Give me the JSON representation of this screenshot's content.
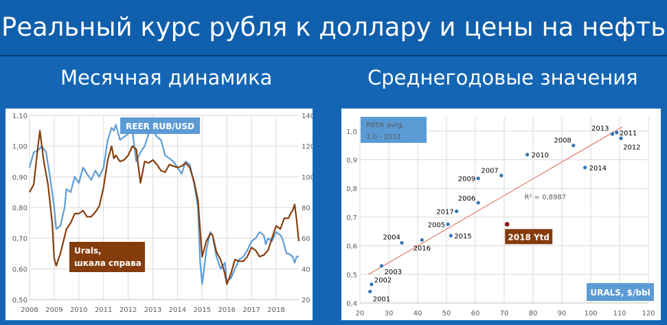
{
  "page": {
    "title": "Реальный курс рубля к доллару и цены на нефть",
    "left_subtitle": "Месячная динамика",
    "right_subtitle": "Среднегодовые значения"
  },
  "colors": {
    "background": "#1466b4",
    "reer_line": "#5b9bd5",
    "urals_line": "#843c0c",
    "scatter_points": "#2e75b6",
    "highlight_point": "#8b1a1a",
    "trend_line": "#e07b6a",
    "label_box_blue": "#5b9bd5"
  },
  "chart_data": [
    {
      "type": "line",
      "x_ticks": [
        "2008",
        "2009",
        "2010",
        "2011",
        "2012",
        "2013",
        "2014",
        "2015",
        "2016",
        "2017",
        "2018"
      ],
      "y_left_ticks": [
        "1,10",
        "1,00",
        "0,90",
        "0,80",
        "0,70",
        "0,60",
        "0,50"
      ],
      "y_right_ticks": [
        "140",
        "120",
        "100",
        "80",
        "60",
        "40",
        "20"
      ],
      "ylim_left": [
        0.5,
        1.1
      ],
      "ylim_right": [
        20,
        140
      ],
      "xlim": [
        2008,
        2018.92
      ],
      "grid": true,
      "series": [
        {
          "name": "REER  RUB/USD",
          "axis": "left",
          "color": "#5b9bd5",
          "points": [
            [
              2008.0,
              0.93
            ],
            [
              2008.17,
              0.98
            ],
            [
              2008.33,
              0.985
            ],
            [
              2008.5,
              1.0
            ],
            [
              2008.67,
              0.98
            ],
            [
              2008.83,
              0.9
            ],
            [
              2009.0,
              0.8
            ],
            [
              2009.08,
              0.73
            ],
            [
              2009.25,
              0.74
            ],
            [
              2009.42,
              0.8
            ],
            [
              2009.5,
              0.86
            ],
            [
              2009.67,
              0.85
            ],
            [
              2009.83,
              0.9
            ],
            [
              2010.0,
              0.88
            ],
            [
              2010.17,
              0.93
            ],
            [
              2010.33,
              0.91
            ],
            [
              2010.5,
              0.89
            ],
            [
              2010.67,
              0.92
            ],
            [
              2010.83,
              0.9
            ],
            [
              2011.0,
              0.93
            ],
            [
              2011.17,
              1.02
            ],
            [
              2011.33,
              1.06
            ],
            [
              2011.42,
              1.05
            ],
            [
              2011.5,
              1.07
            ],
            [
              2011.67,
              1.02
            ],
            [
              2011.83,
              1.03
            ],
            [
              2012.0,
              1.04
            ],
            [
              2012.08,
              1.06
            ],
            [
              2012.17,
              1.05
            ],
            [
              2012.33,
              0.95
            ],
            [
              2012.5,
              0.98
            ],
            [
              2012.67,
              1.0
            ],
            [
              2012.83,
              1.04
            ],
            [
              2013.0,
              1.05
            ],
            [
              2013.17,
              1.03
            ],
            [
              2013.33,
              1.02
            ],
            [
              2013.5,
              0.97
            ],
            [
              2013.67,
              0.96
            ],
            [
              2013.83,
              0.95
            ],
            [
              2014.0,
              0.93
            ],
            [
              2014.17,
              0.91
            ],
            [
              2014.33,
              0.95
            ],
            [
              2014.5,
              0.94
            ],
            [
              2014.67,
              0.88
            ],
            [
              2014.83,
              0.8
            ],
            [
              2014.92,
              0.62
            ],
            [
              2015.0,
              0.55
            ],
            [
              2015.17,
              0.66
            ],
            [
              2015.33,
              0.72
            ],
            [
              2015.42,
              0.71
            ],
            [
              2015.58,
              0.64
            ],
            [
              2015.75,
              0.6
            ],
            [
              2015.92,
              0.62
            ],
            [
              2016.0,
              0.56
            ],
            [
              2016.17,
              0.57
            ],
            [
              2016.33,
              0.6
            ],
            [
              2016.5,
              0.63
            ],
            [
              2016.67,
              0.64
            ],
            [
              2016.83,
              0.66
            ],
            [
              2017.0,
              0.69
            ],
            [
              2017.17,
              0.7
            ],
            [
              2017.33,
              0.72
            ],
            [
              2017.5,
              0.71
            ],
            [
              2017.58,
              0.68
            ],
            [
              2017.67,
              0.7
            ],
            [
              2017.83,
              0.69
            ],
            [
              2018.0,
              0.72
            ],
            [
              2018.17,
              0.71
            ],
            [
              2018.25,
              0.7
            ],
            [
              2018.42,
              0.65
            ],
            [
              2018.5,
              0.65
            ],
            [
              2018.67,
              0.64
            ],
            [
              2018.75,
              0.62
            ],
            [
              2018.83,
              0.64
            ],
            [
              2018.92,
              0.64
            ]
          ]
        },
        {
          "name": "Urals,\nшкала справа",
          "axis": "right",
          "color": "#843c0c",
          "points": [
            [
              2008.0,
              90
            ],
            [
              2008.17,
              95
            ],
            [
              2008.33,
              118
            ],
            [
              2008.42,
              130
            ],
            [
              2008.58,
              110
            ],
            [
              2008.75,
              95
            ],
            [
              2008.92,
              70
            ],
            [
              2009.0,
              47
            ],
            [
              2009.08,
              42
            ],
            [
              2009.25,
              50
            ],
            [
              2009.5,
              66
            ],
            [
              2009.67,
              70
            ],
            [
              2009.83,
              76
            ],
            [
              2010.0,
              76
            ],
            [
              2010.17,
              78
            ],
            [
              2010.33,
              74
            ],
            [
              2010.5,
              74
            ],
            [
              2010.67,
              77
            ],
            [
              2010.83,
              81
            ],
            [
              2011.0,
              93
            ],
            [
              2011.17,
              111
            ],
            [
              2011.33,
              120
            ],
            [
              2011.42,
              112
            ],
            [
              2011.5,
              114
            ],
            [
              2011.67,
              110
            ],
            [
              2011.83,
              111
            ],
            [
              2012.0,
              114
            ],
            [
              2012.17,
              120
            ],
            [
              2012.33,
              118
            ],
            [
              2012.5,
              96
            ],
            [
              2012.67,
              110
            ],
            [
              2012.83,
              109
            ],
            [
              2013.0,
              111
            ],
            [
              2013.17,
              108
            ],
            [
              2013.33,
              104
            ],
            [
              2013.5,
              103
            ],
            [
              2013.67,
              108
            ],
            [
              2013.83,
              107
            ],
            [
              2014.0,
              106
            ],
            [
              2014.17,
              107
            ],
            [
              2014.33,
              109
            ],
            [
              2014.5,
              106
            ],
            [
              2014.67,
              97
            ],
            [
              2014.83,
              85
            ],
            [
              2014.92,
              65
            ],
            [
              2015.0,
              48
            ],
            [
              2015.17,
              58
            ],
            [
              2015.33,
              63
            ],
            [
              2015.42,
              62
            ],
            [
              2015.58,
              51
            ],
            [
              2015.75,
              46
            ],
            [
              2015.92,
              37
            ],
            [
              2016.0,
              30
            ],
            [
              2016.17,
              37
            ],
            [
              2016.33,
              46
            ],
            [
              2016.5,
              45
            ],
            [
              2016.67,
              45
            ],
            [
              2016.83,
              48
            ],
            [
              2017.0,
              54
            ],
            [
              2017.17,
              52
            ],
            [
              2017.33,
              48
            ],
            [
              2017.5,
              49
            ],
            [
              2017.67,
              52
            ],
            [
              2017.83,
              60
            ],
            [
              2018.0,
              68
            ],
            [
              2018.17,
              66
            ],
            [
              2018.33,
              73
            ],
            [
              2018.5,
              73
            ],
            [
              2018.58,
              76
            ],
            [
              2018.67,
              78
            ],
            [
              2018.75,
              82
            ],
            [
              2018.83,
              72
            ],
            [
              2018.92,
              58
            ]
          ]
        }
      ],
      "labels": {
        "reer_box": "REER  RUB/USD",
        "urals_box_line1": "Urals,",
        "urals_box_line2": "шкала справа"
      }
    },
    {
      "type": "scatter",
      "x_ticks": [
        "20",
        "30",
        "40",
        "50",
        "60",
        "70",
        "80",
        "90",
        "100",
        "110",
        "120"
      ],
      "y_ticks": [
        "1,0",
        "0,9",
        "0,8",
        "0,7",
        "0,6",
        "0,5",
        "0,4"
      ],
      "xlim": [
        20,
        120
      ],
      "ylim": [
        0.4,
        1.05
      ],
      "grid": true,
      "xlabel": "URALS, $/bbl",
      "ylabel_box_line1": "REER avrg,",
      "ylabel_box_line2": "1.0 - 2011",
      "points": [
        {
          "label": "2001",
          "x": 23.5,
          "y": 0.44
        },
        {
          "label": "2002",
          "x": 24,
          "y": 0.465
        },
        {
          "label": "2003",
          "x": 27.5,
          "y": 0.53
        },
        {
          "label": "2004",
          "x": 34.5,
          "y": 0.61
        },
        {
          "label": "2005",
          "x": 50.5,
          "y": 0.675
        },
        {
          "label": "2006",
          "x": 61,
          "y": 0.75
        },
        {
          "label": "2007",
          "x": 69,
          "y": 0.845
        },
        {
          "label": "2008",
          "x": 94,
          "y": 0.95
        },
        {
          "label": "2009",
          "x": 61,
          "y": 0.835
        },
        {
          "label": "2010",
          "x": 78,
          "y": 0.918
        },
        {
          "label": "2011",
          "x": 109,
          "y": 0.995
        },
        {
          "label": "2012",
          "x": 110.5,
          "y": 0.975
        },
        {
          "label": "2013",
          "x": 107.5,
          "y": 0.99
        },
        {
          "label": "2014",
          "x": 98,
          "y": 0.873
        },
        {
          "label": "2015",
          "x": 51.5,
          "y": 0.635
        },
        {
          "label": "2016",
          "x": 41.5,
          "y": 0.62
        },
        {
          "label": "2017",
          "x": 53.5,
          "y": 0.72
        }
      ],
      "highlight_point": {
        "label": "2018 Ytd",
        "x": 71,
        "y": 0.675
      },
      "trendline": {
        "x": [
          23,
          111
        ],
        "y": [
          0.5,
          1.015
        ]
      },
      "r_squared_label": "R² = 0,8987"
    }
  ]
}
